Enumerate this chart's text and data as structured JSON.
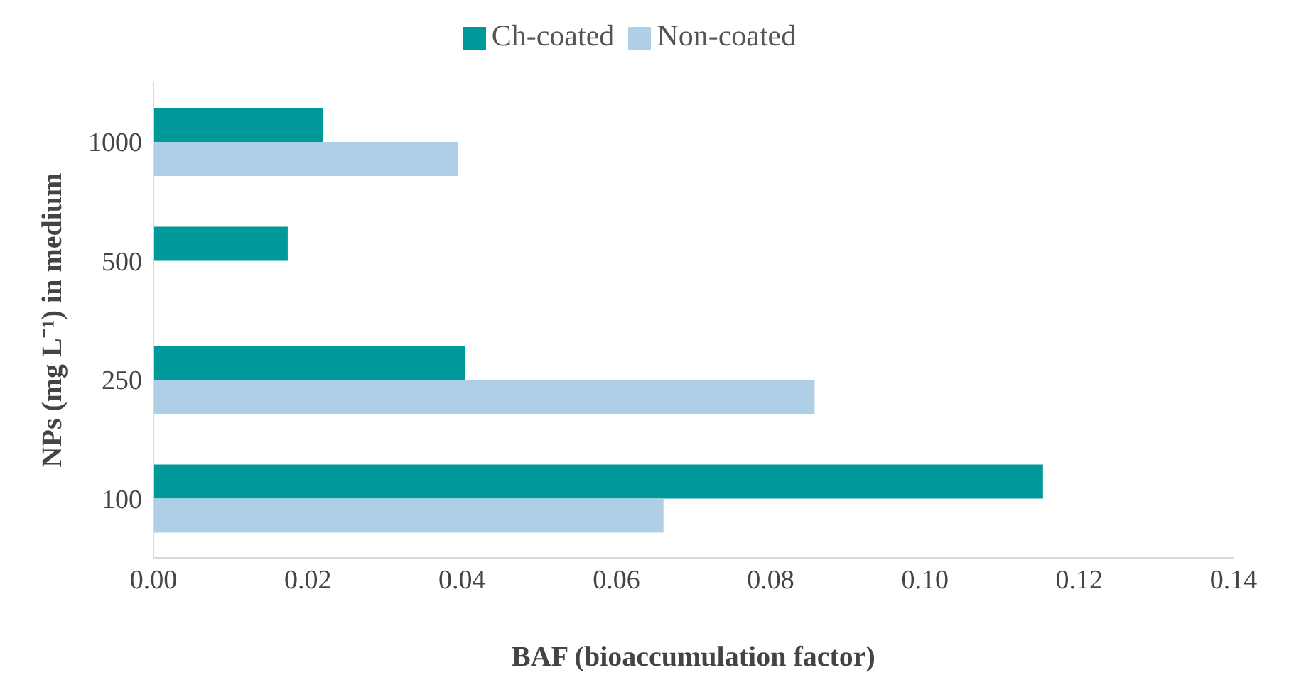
{
  "chart_data": {
    "type": "bar",
    "orientation": "horizontal",
    "xlabel": "BAF (bioaccumulation factor)",
    "ylabel": "NPs (mg L⁻¹) in medium",
    "categories": [
      "1000",
      "500",
      "250",
      "100"
    ],
    "series": [
      {
        "name": "Ch-coated",
        "color": "#009999",
        "values": [
          0.022,
          0.0174,
          0.0404,
          0.1153
        ]
      },
      {
        "name": "Non-coated",
        "color": "#aecfe6",
        "values": [
          0.0395,
          null,
          0.0857,
          0.0661
        ]
      }
    ],
    "xlim": [
      0,
      0.14
    ],
    "xticks": [
      {
        "value": 0,
        "label": "0.00"
      },
      {
        "value": 0.02,
        "label": "0.02"
      },
      {
        "value": 0.04,
        "label": "0.04"
      },
      {
        "value": 0.06,
        "label": "0.06"
      },
      {
        "value": 0.08,
        "label": "0.08"
      },
      {
        "value": 0.1,
        "label": "0.10"
      },
      {
        "value": 0.12,
        "label": "0.12"
      },
      {
        "value": 0.14,
        "label": "0.14"
      }
    ],
    "legend": "top",
    "grid": false
  }
}
